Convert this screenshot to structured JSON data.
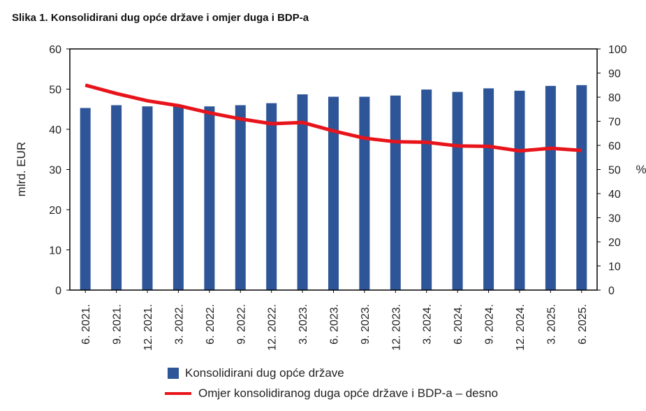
{
  "title": "Slika 1. Konsolidirani dug opće države i omjer duga i BDP-a",
  "colors": {
    "bar": "#2E5597",
    "line": "#E8141B"
  },
  "chart_data": {
    "type": "bar",
    "categories": [
      "6. 2021.",
      "9. 2021.",
      "12. 2021.",
      "3. 2022.",
      "6. 2022.",
      "9. 2022.",
      "12. 2022.",
      "3. 2023.",
      "6. 2023.",
      "9. 2023.",
      "12. 2023.",
      "3. 2024.",
      "6. 2024.",
      "9. 2024.",
      "12. 2024.",
      "3. 2025.",
      "6. 2025."
    ],
    "ylabel": "mlrd. EUR",
    "ylabel_right": "%",
    "ylim": [
      0,
      60
    ],
    "ylim_right": [
      0,
      100
    ],
    "yticks": [
      "0",
      "10",
      "20",
      "30",
      "40",
      "50",
      "60"
    ],
    "yticks_right": [
      "0",
      "10",
      "20",
      "30",
      "40",
      "50",
      "60",
      "70",
      "80",
      "90",
      "100"
    ],
    "grid": false,
    "series": [
      {
        "name": "Konsolidirani dug opće države",
        "type": "bar",
        "axis": "left",
        "values": [
          45.3,
          46.0,
          45.7,
          45.9,
          45.7,
          46.0,
          46.5,
          48.7,
          48.1,
          48.1,
          48.4,
          49.9,
          49.3,
          50.2,
          49.6,
          50.8,
          51.0
        ]
      },
      {
        "name": "Omjer konsolidiranog duga opće države i BDP-a – desno",
        "type": "line",
        "axis": "right",
        "values": [
          85.0,
          81.5,
          78.5,
          76.5,
          73.5,
          71.0,
          69.0,
          69.5,
          66.0,
          63.0,
          61.5,
          61.3,
          59.8,
          59.6,
          57.7,
          58.8,
          57.9
        ]
      }
    ]
  }
}
